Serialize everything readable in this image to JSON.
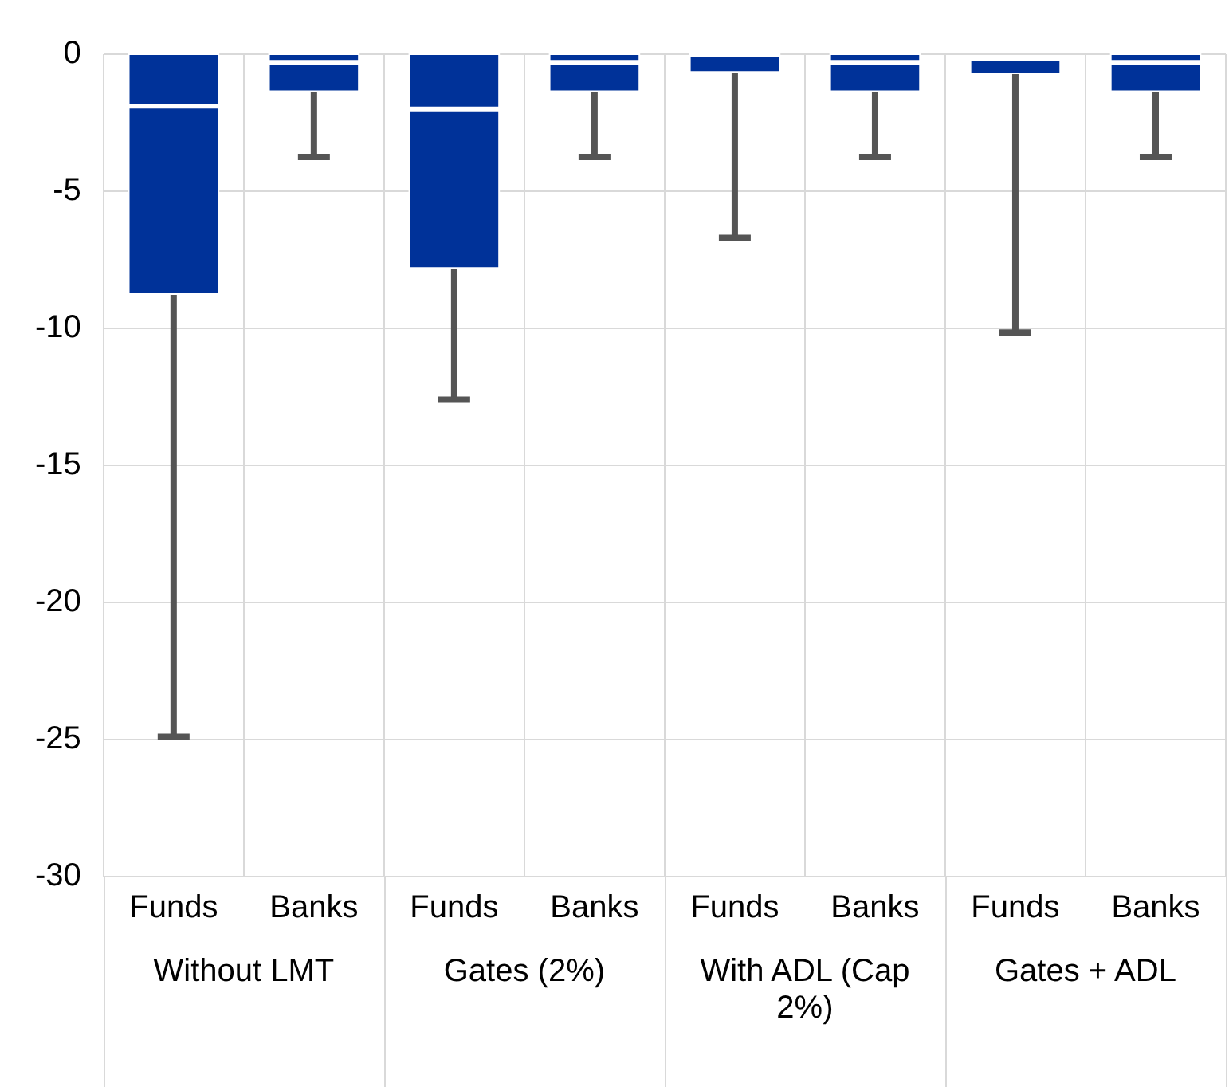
{
  "chart_data": {
    "type": "box",
    "categories": [
      "Funds",
      "Banks",
      "Funds",
      "Banks",
      "Funds",
      "Banks",
      "Funds",
      "Banks"
    ],
    "boxes": [
      {
        "low": -24.9,
        "q1": -8.75,
        "median": -1.9,
        "q3": 0,
        "high": 0
      },
      {
        "low": -3.75,
        "q1": -1.35,
        "median": -0.3,
        "q3": 0,
        "high": 0
      },
      {
        "low": -12.6,
        "q1": -7.8,
        "median": -2,
        "q3": 0,
        "high": 0
      },
      {
        "low": -3.75,
        "q1": -1.35,
        "median": -0.3,
        "q3": 0,
        "high": 0
      },
      {
        "low": -6.7,
        "q1": -0.65,
        "median": 0,
        "q3": 0,
        "high": 0
      },
      {
        "low": -3.75,
        "q1": -1.35,
        "median": -0.3,
        "q3": 0,
        "high": 0
      },
      {
        "low": -10.15,
        "q1": -0.7,
        "median": -0.15,
        "q3": -0.15,
        "high": -0.15
      },
      {
        "low": -3.75,
        "q1": -1.35,
        "median": -0.3,
        "q3": 0,
        "high": 0
      }
    ],
    "color": "#003299",
    "ylim": [
      -30,
      0
    ],
    "yticks": [
      -30,
      -25,
      -20,
      -15,
      -10,
      -5,
      0
    ],
    "grid": true,
    "annotations": [
      "Without LMT",
      "Gates (2%)",
      "With ADL (Cap 2%)",
      "Gates + ADL"
    ]
  }
}
